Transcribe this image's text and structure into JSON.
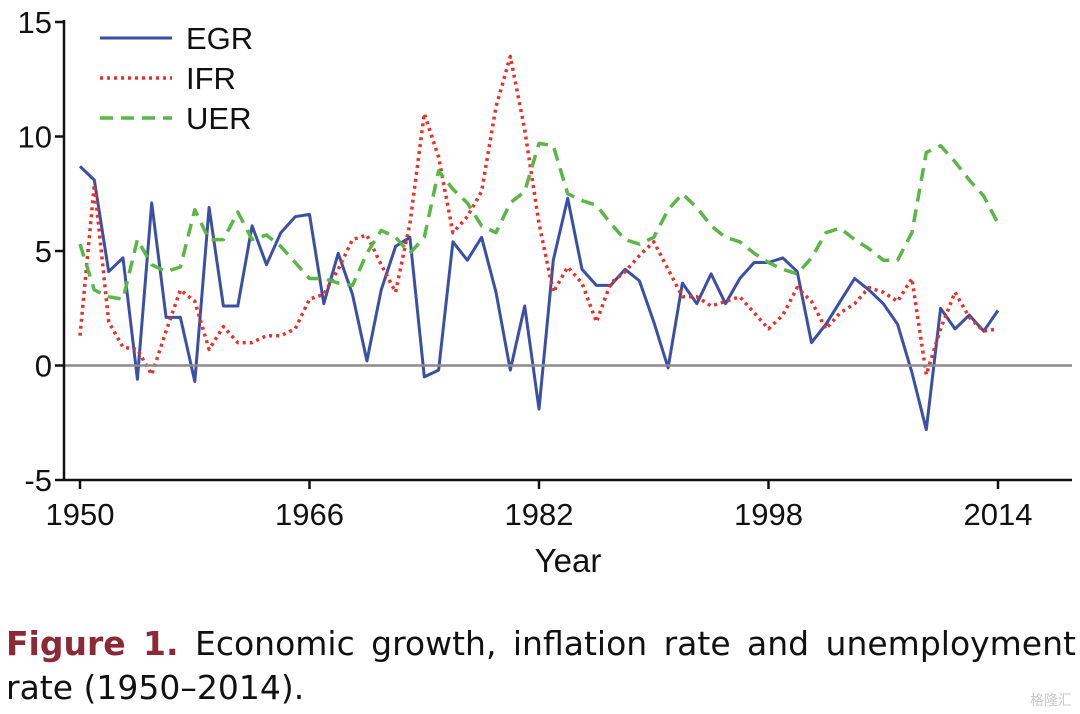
{
  "chart_data": {
    "type": "line",
    "xlabel": "Year",
    "ylabel": "",
    "xlim": [
      1950,
      2018
    ],
    "ylim": [
      -5,
      15
    ],
    "x_ticks": [
      1950,
      1966,
      1982,
      1998,
      2014
    ],
    "y_ticks": [
      15,
      10,
      5,
      0,
      -5
    ],
    "zero_line": true,
    "grid": false,
    "legend_position": "top-left",
    "x": [
      1950,
      1951,
      1952,
      1953,
      1954,
      1955,
      1956,
      1957,
      1958,
      1959,
      1960,
      1961,
      1962,
      1963,
      1964,
      1965,
      1966,
      1967,
      1968,
      1969,
      1970,
      1971,
      1972,
      1973,
      1974,
      1975,
      1976,
      1977,
      1978,
      1979,
      1980,
      1981,
      1982,
      1983,
      1984,
      1985,
      1986,
      1987,
      1988,
      1989,
      1990,
      1991,
      1992,
      1993,
      1994,
      1995,
      1996,
      1997,
      1998,
      1999,
      2000,
      2001,
      2002,
      2003,
      2004,
      2005,
      2006,
      2007,
      2008,
      2009,
      2010,
      2011,
      2012,
      2013,
      2014
    ],
    "series": [
      {
        "name": "EGR",
        "color": "#3b4fa6",
        "style": "solid",
        "values": [
          8.7,
          8.1,
          4.1,
          4.7,
          -0.6,
          7.1,
          2.1,
          2.1,
          -0.7,
          6.9,
          2.6,
          2.6,
          6.1,
          4.4,
          5.8,
          6.5,
          6.6,
          2.7,
          4.9,
          3.1,
          0.2,
          3.3,
          5.2,
          5.6,
          -0.5,
          -0.2,
          5.4,
          4.6,
          5.6,
          3.2,
          -0.2,
          2.6,
          -1.9,
          4.6,
          7.3,
          4.2,
          3.5,
          3.5,
          4.2,
          3.7,
          1.9,
          -0.1,
          3.6,
          2.7,
          4.0,
          2.7,
          3.8,
          4.5,
          4.5,
          4.7,
          4.1,
          1.0,
          1.8,
          2.8,
          3.8,
          3.3,
          2.7,
          1.8,
          -0.3,
          -2.8,
          2.5,
          1.6,
          2.2,
          1.5,
          2.4
        ]
      },
      {
        "name": "IFR",
        "color": "#e8312b",
        "style": "dotted",
        "values": [
          1.3,
          7.9,
          1.9,
          0.8,
          0.7,
          -0.4,
          1.5,
          3.3,
          2.8,
          0.7,
          1.7,
          1.0,
          1.0,
          1.3,
          1.3,
          1.6,
          2.9,
          3.1,
          4.2,
          5.5,
          5.7,
          4.4,
          3.2,
          6.2,
          11.0,
          9.1,
          5.8,
          6.5,
          7.6,
          11.3,
          13.5,
          10.3,
          6.2,
          3.2,
          4.3,
          3.6,
          1.9,
          3.6,
          4.1,
          4.8,
          5.4,
          4.2,
          3.0,
          3.0,
          2.6,
          2.8,
          3.0,
          2.3,
          1.6,
          2.2,
          3.4,
          2.8,
          1.6,
          2.3,
          2.7,
          3.4,
          3.2,
          2.8,
          3.8,
          -0.4,
          1.6,
          3.2,
          2.1,
          1.5,
          1.6
        ]
      },
      {
        "name": "UER",
        "color": "#5ab646",
        "style": "dashed",
        "values": [
          5.3,
          3.3,
          3.0,
          2.9,
          5.5,
          4.4,
          4.1,
          4.3,
          6.8,
          5.5,
          5.5,
          6.7,
          5.5,
          5.7,
          5.2,
          4.5,
          3.8,
          3.8,
          3.6,
          3.5,
          4.9,
          5.9,
          5.6,
          4.9,
          5.6,
          8.5,
          7.7,
          7.1,
          6.1,
          5.8,
          7.1,
          7.6,
          9.7,
          9.6,
          7.5,
          7.2,
          7.0,
          6.2,
          5.5,
          5.3,
          5.6,
          6.8,
          7.5,
          6.9,
          6.1,
          5.6,
          5.4,
          4.9,
          4.5,
          4.2,
          4.0,
          4.7,
          5.8,
          6.0,
          5.5,
          5.1,
          4.6,
          4.6,
          5.8,
          9.3,
          9.6,
          8.9,
          8.1,
          7.4,
          6.2
        ]
      }
    ]
  },
  "caption": {
    "label": "Figure 1.",
    "text": "Economic growth, inflation rate and unemployment rate (1950–2014)."
  },
  "watermark": "格隆汇"
}
